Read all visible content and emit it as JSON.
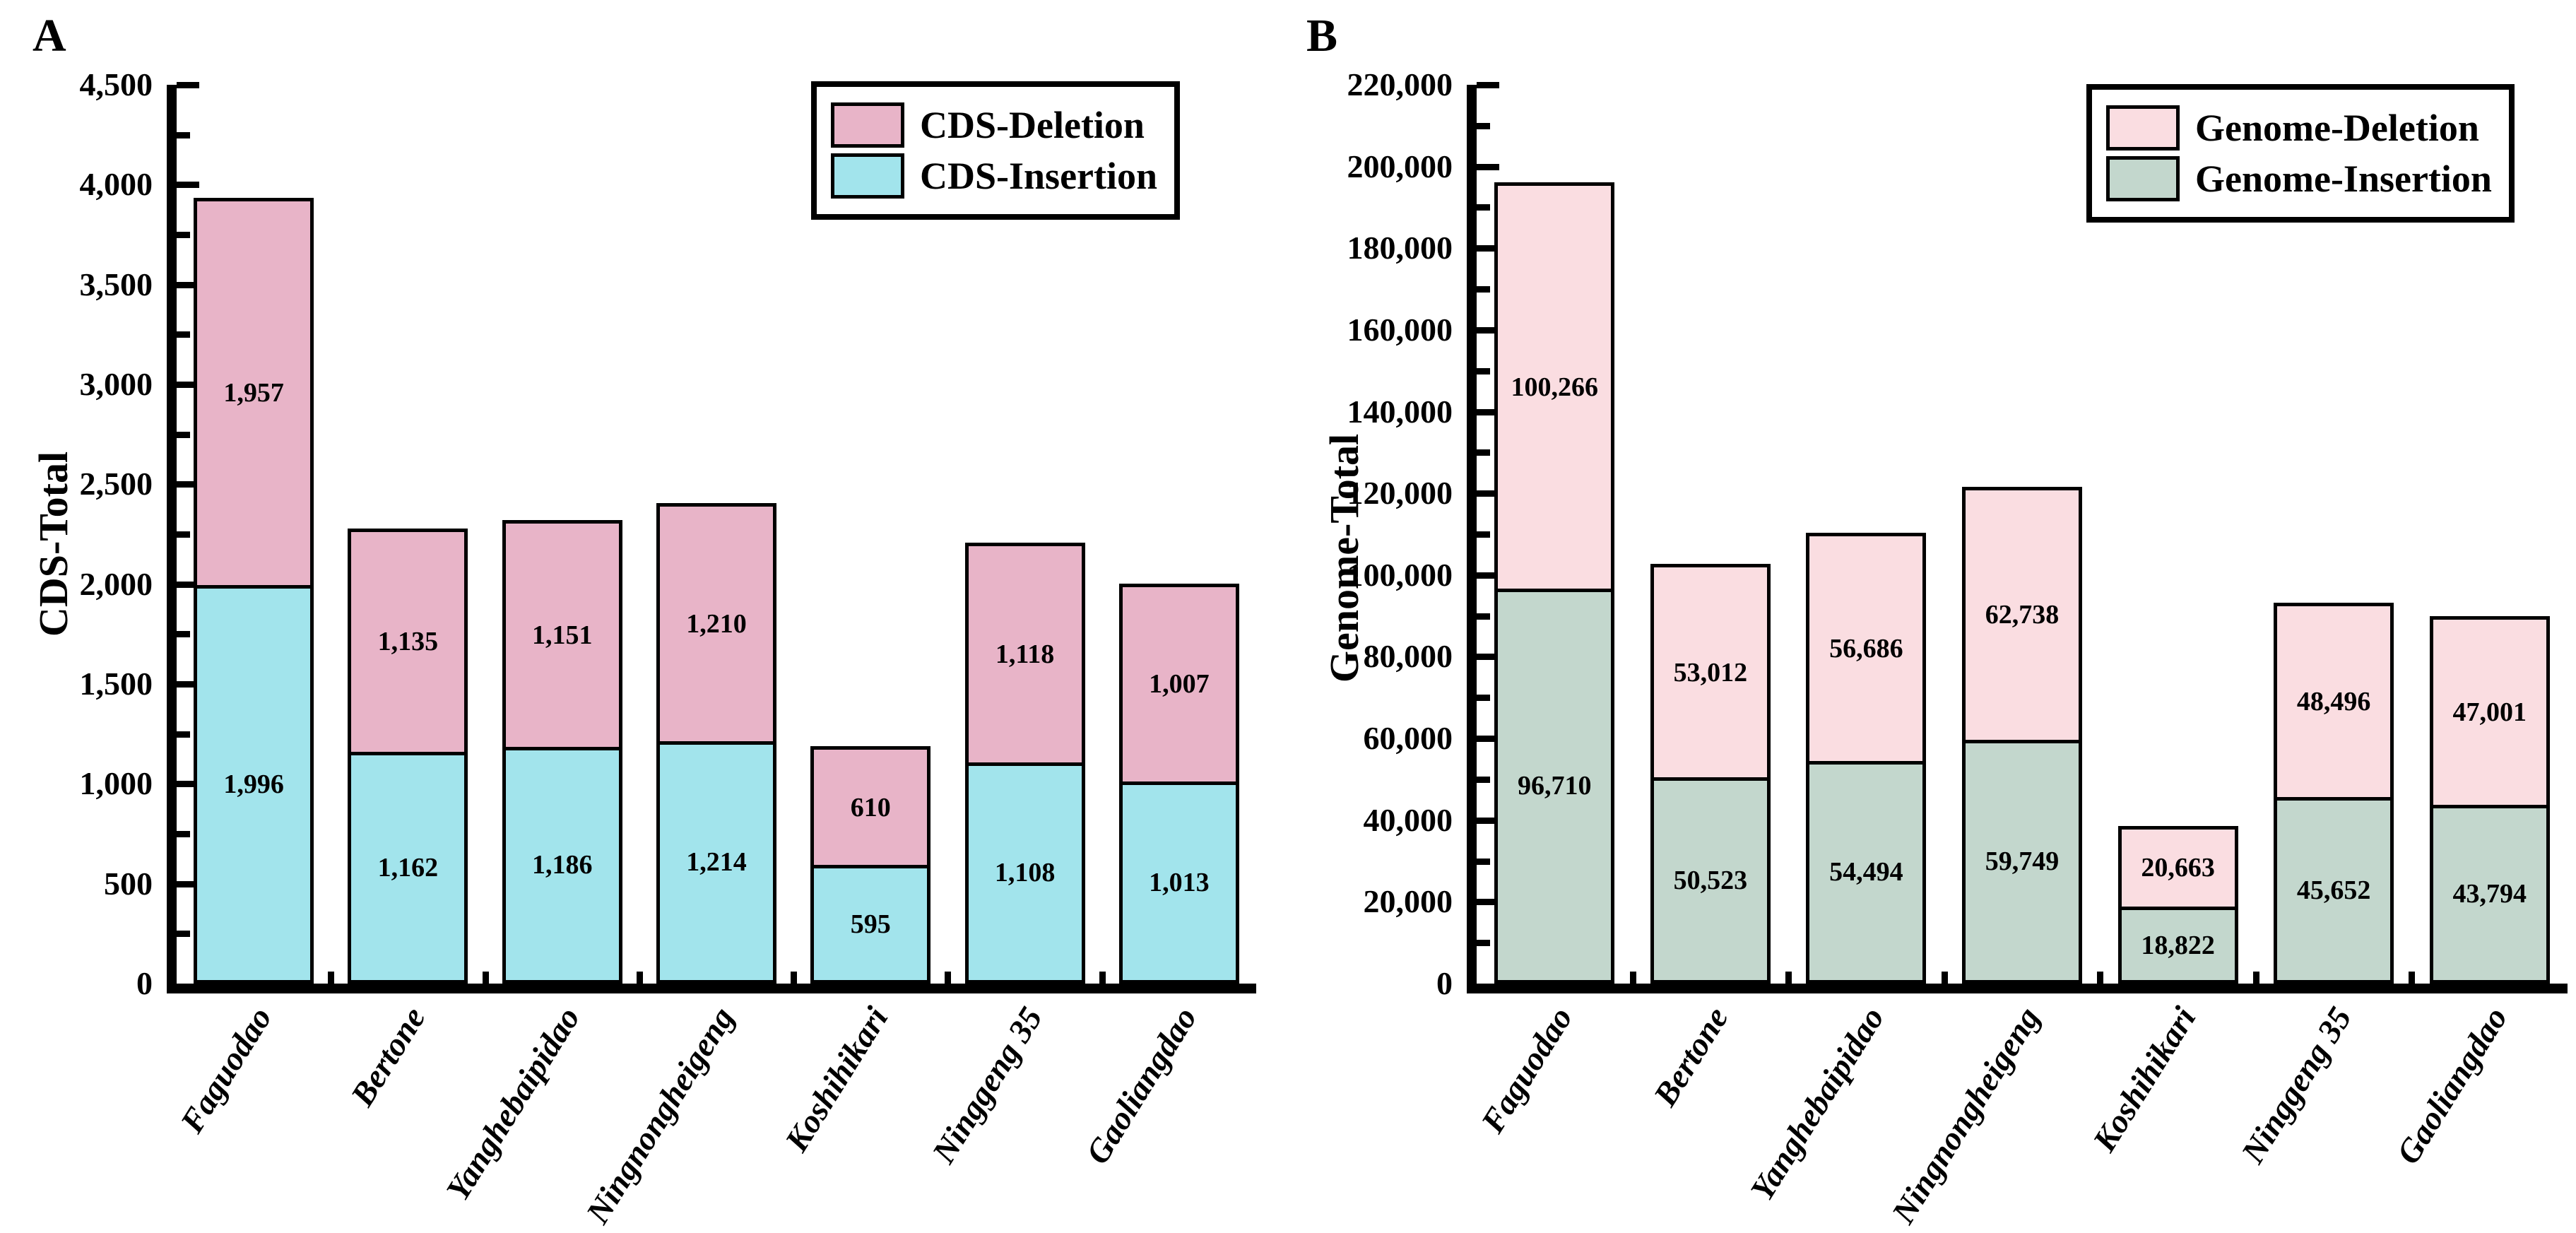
{
  "figure": {
    "panels": [
      {
        "label": "A",
        "y_axis_title": "CDS-Total"
      },
      {
        "label": "B",
        "y_axis_title": "Genome-Total"
      }
    ],
    "axis_color": "#000000",
    "background_color": "#ffffff"
  },
  "chart_data": [
    {
      "type": "bar",
      "stacked": true,
      "panel_label": "A",
      "title": "",
      "xlabel": "",
      "ylabel": "CDS-Total",
      "ylim": [
        0,
        4500
      ],
      "y_major_tick": 500,
      "y_minor_tick": 250,
      "grid": false,
      "legend_position": "top-right",
      "categories": [
        "Faguodao",
        "Bertone",
        "Yanghebaipidao",
        "Ningnongheigeng",
        "Koshihikari",
        "Ninggeng 35",
        "Gaoliangdao"
      ],
      "series": [
        {
          "name": "CDS-Deletion",
          "color": "#e8b4c8",
          "values": [
            1957,
            1135,
            1151,
            1210,
            610,
            1118,
            1007
          ]
        },
        {
          "name": "CDS-Insertion",
          "color": "#a2e4ec",
          "values": [
            1996,
            1162,
            1186,
            1214,
            595,
            1108,
            1013
          ]
        }
      ],
      "bar_border_color": "#000000"
    },
    {
      "type": "bar",
      "stacked": true,
      "panel_label": "B",
      "title": "",
      "xlabel": "",
      "ylabel": "Genome-Total",
      "ylim": [
        0,
        220000
      ],
      "y_major_tick": 20000,
      "y_minor_tick": 10000,
      "grid": false,
      "legend_position": "top-right",
      "categories": [
        "Faguodao",
        "Bertone",
        "Yanghebaipidao",
        "Ningnongheigeng",
        "Koshihikari",
        "Ninggeng 35",
        "Gaoliangdao"
      ],
      "series": [
        {
          "name": "Genome-Deletion",
          "color": "#fadde1",
          "values": [
            100266,
            53012,
            56686,
            62738,
            20663,
            48496,
            47001
          ]
        },
        {
          "name": "Genome-Insertion",
          "color": "#c3d7cd",
          "values": [
            96710,
            50523,
            54494,
            59749,
            18822,
            45652,
            43794
          ]
        }
      ],
      "bar_border_color": "#000000"
    }
  ]
}
